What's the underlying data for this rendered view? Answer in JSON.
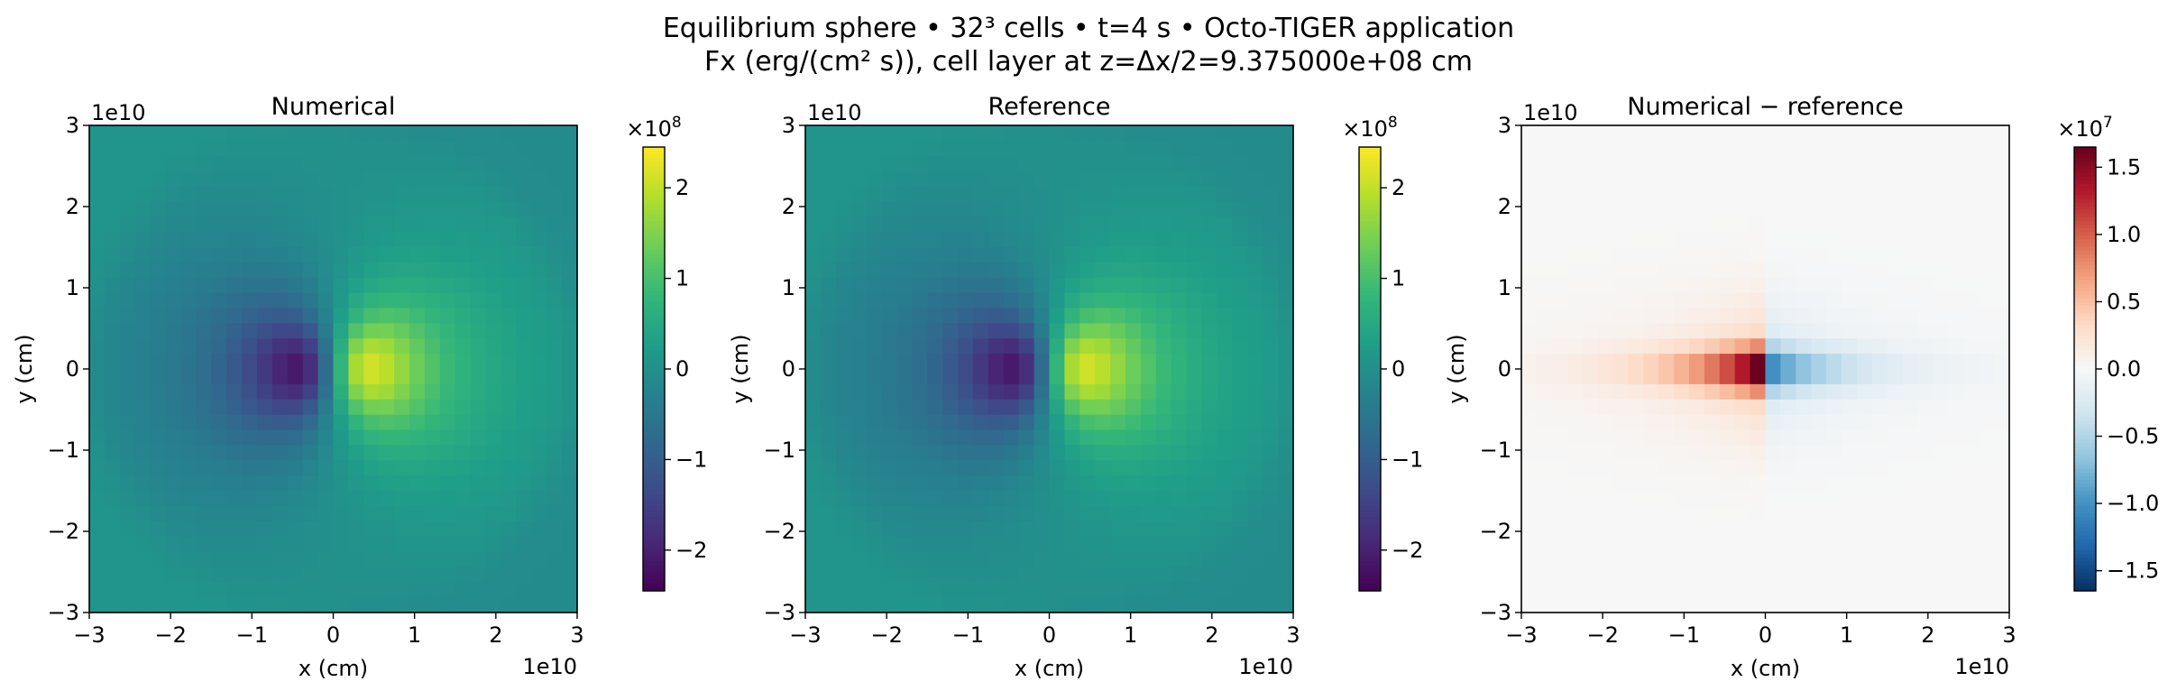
{
  "figure": {
    "title_line1": "Equilibrium sphere • 32³ cells • t=4 s • Octo-TIGER application",
    "title_line2": "Fx (erg/(cm² s)), cell layer at z=Δx/2=9.375000e+08 cm"
  },
  "chart_data": [
    {
      "type": "heatmap",
      "title": "Numerical",
      "xlabel": "x (cm)",
      "ylabel": "y (cm)",
      "xlim": [
        -30000000000.0,
        30000000000.0
      ],
      "ylim": [
        -30000000000.0,
        30000000000.0
      ],
      "xticks": [
        "−3",
        "−2",
        "−1",
        "0",
        "1",
        "2",
        "3"
      ],
      "yticks": [
        "−3",
        "−2",
        "−1",
        "0",
        "1",
        "2",
        "3"
      ],
      "x_offset": "1e10",
      "y_offset": "1e10",
      "grid": 32,
      "colormap": "viridis",
      "field": "Fx",
      "value_range": [
        -245000000.0,
        245000000.0
      ],
      "colorbar": {
        "range": [
          -245000000.0,
          245000000.0
        ],
        "ticks": [
          "−2",
          "−1",
          "0",
          "1",
          "2"
        ],
        "tick_values": [
          -200000000.0,
          -100000000.0,
          0,
          100000000.0,
          200000000.0
        ],
        "multiplier": "×10",
        "exponent": "8"
      }
    },
    {
      "type": "heatmap",
      "title": "Reference",
      "xlabel": "x (cm)",
      "ylabel": "y (cm)",
      "xlim": [
        -30000000000.0,
        30000000000.0
      ],
      "ylim": [
        -30000000000.0,
        30000000000.0
      ],
      "xticks": [
        "−3",
        "−2",
        "−1",
        "0",
        "1",
        "2",
        "3"
      ],
      "yticks": [
        "−3",
        "−2",
        "−1",
        "0",
        "1",
        "2",
        "3"
      ],
      "x_offset": "1e10",
      "y_offset": "1e10",
      "grid": 32,
      "colormap": "viridis",
      "field": "Fx",
      "value_range": [
        -245000000.0,
        245000000.0
      ],
      "colorbar": {
        "range": [
          -245000000.0,
          245000000.0
        ],
        "ticks": [
          "−2",
          "−1",
          "0",
          "1",
          "2"
        ],
        "tick_values": [
          -200000000.0,
          -100000000.0,
          0,
          100000000.0,
          200000000.0
        ],
        "multiplier": "×10",
        "exponent": "8"
      }
    },
    {
      "type": "heatmap",
      "title": "Numerical − reference",
      "xlabel": "x (cm)",
      "ylabel": "y (cm)",
      "xlim": [
        -30000000000.0,
        30000000000.0
      ],
      "ylim": [
        -30000000000.0,
        30000000000.0
      ],
      "xticks": [
        "−3",
        "−2",
        "−1",
        "0",
        "1",
        "2",
        "3"
      ],
      "yticks": [
        "−3",
        "−2",
        "−1",
        "0",
        "1",
        "2",
        "3"
      ],
      "x_offset": "1e10",
      "y_offset": "1e10",
      "grid": 32,
      "colormap": "RdBu_r",
      "field": "difference",
      "value_range": [
        -16500000.0,
        16500000.0
      ],
      "colorbar": {
        "range": [
          -16500000.0,
          16500000.0
        ],
        "ticks": [
          "−1.5",
          "−1.0",
          "−0.5",
          "0.0",
          "0.5",
          "1.0",
          "1.5"
        ],
        "tick_values": [
          -15000000.0,
          -10000000.0,
          -5000000.0,
          0,
          5000000.0,
          10000000.0,
          15000000.0
        ],
        "multiplier": "×10",
        "exponent": "7"
      }
    }
  ]
}
